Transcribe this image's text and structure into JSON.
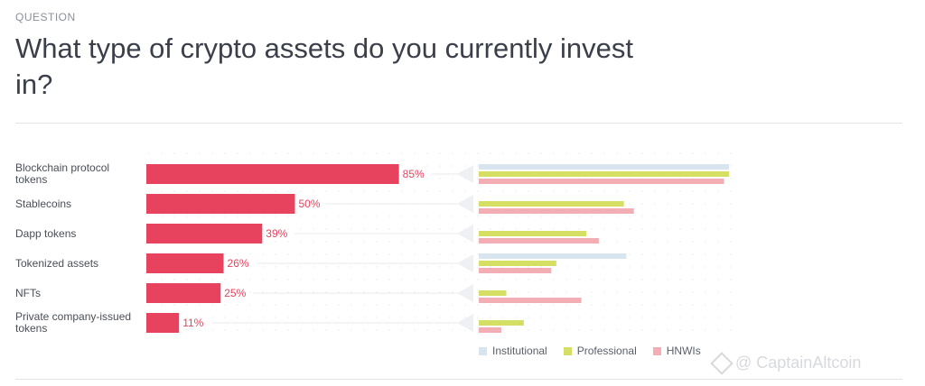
{
  "header": {
    "eyebrow": "QUESTION",
    "title": "What type of crypto assets do you currently invest in?"
  },
  "colors": {
    "overall": "#e8435e",
    "institutional": "#d8e4ee",
    "professional": "#d4df63",
    "hnwis": "#f2aeb4"
  },
  "legend": [
    {
      "label": "Institutional",
      "color": "#d8e4ee"
    },
    {
      "label": "Professional",
      "color": "#d4df63"
    },
    {
      "label": "HNWIs",
      "color": "#f2aeb4"
    }
  ],
  "watermark": "@ CaptainAltcoin",
  "chart_data": {
    "type": "bar",
    "categories": [
      "Blockchain protocol tokens",
      "Stablecoins",
      "Dapp tokens",
      "Tokenized assets",
      "NFTs",
      "Private company-issued tokens"
    ],
    "overall": {
      "values": [
        85,
        50,
        39,
        26,
        25,
        11
      ],
      "labels": [
        "85%",
        "50%",
        "39%",
        "26%",
        "25%",
        "11%"
      ]
    },
    "series": [
      {
        "name": "Institutional",
        "values": [
          100,
          0,
          0,
          59,
          0,
          0
        ]
      },
      {
        "name": "Professional",
        "values": [
          100,
          58,
          43,
          31,
          11,
          18
        ]
      },
      {
        "name": "HNWIs",
        "values": [
          98,
          62,
          48,
          29,
          41,
          9
        ]
      }
    ],
    "xlim": [
      0,
      100
    ],
    "legend_position": "bottom"
  }
}
